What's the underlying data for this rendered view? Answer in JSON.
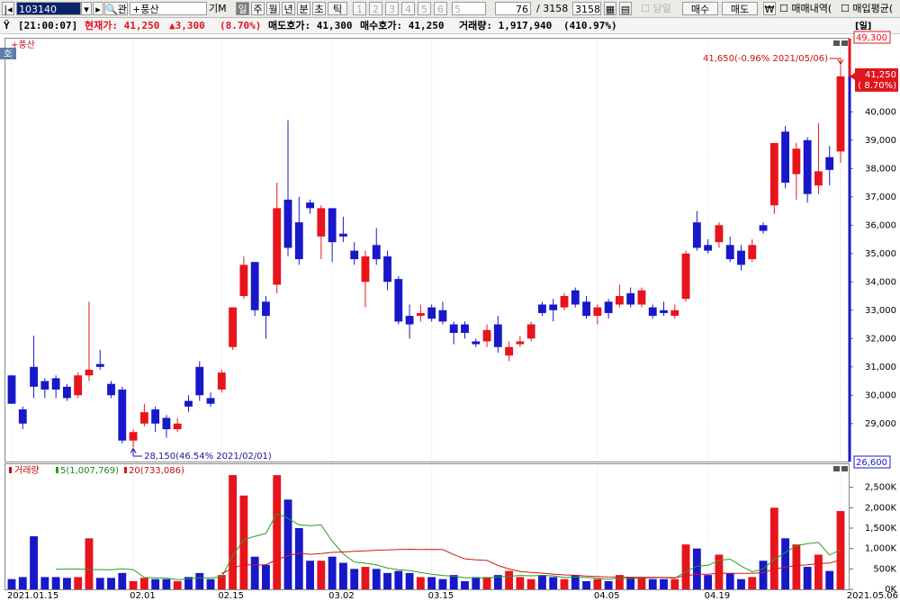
{
  "toolbar": {
    "code": "103140",
    "name": "+풍산",
    "periods": [
      "일",
      "주",
      "월",
      "년",
      "분",
      "초",
      "틱"
    ],
    "counts": [
      "1",
      "2",
      "3",
      "4",
      "5",
      "6"
    ],
    "count_select": "5",
    "view": "76",
    "total": "/ 3158",
    "total_box": "3158",
    "today": "당일",
    "buy": "매수",
    "sell": "매도",
    "won": "₩",
    "trades": "매매내역(",
    "avg": "매입평균("
  },
  "info_bar": {
    "time": "[21:00:07]",
    "price": "현재가: 41,250",
    "change": "▲3,300",
    "rate": "(8.70%)",
    "ask": "매도호가: 41,300",
    "bid": "매수호가: 41,250",
    "volume": "거래량: 1,917,940",
    "volume_rate": "(410.97%)"
  },
  "chart_data": {
    "type": "candlestick",
    "title": "+풍산",
    "badge": "호",
    "period_label": "[일]",
    "categories": [
      "2021.01.15",
      null,
      null,
      null,
      null,
      null,
      null,
      null,
      null,
      null,
      null,
      "02.01",
      null,
      null,
      null,
      null,
      null,
      null,
      null,
      "02.15",
      null,
      null,
      null,
      null,
      null,
      null,
      null,
      null,
      null,
      "03.02",
      null,
      null,
      null,
      null,
      null,
      null,
      null,
      null,
      "03.15",
      null,
      null,
      null,
      null,
      null,
      null,
      null,
      null,
      null,
      null,
      null,
      null,
      null,
      null,
      "04.05",
      null,
      null,
      null,
      null,
      null,
      null,
      null,
      null,
      null,
      "04.19",
      null,
      null,
      null,
      null,
      null,
      null,
      null,
      null,
      null,
      null,
      null,
      "2021.05.06"
    ],
    "open": [
      30700,
      29500,
      31000,
      30500,
      30600,
      30300,
      30000,
      30700,
      31100,
      30400,
      30200,
      28400,
      29000,
      29500,
      29200,
      28800,
      29800,
      31000,
      29900,
      30200,
      31700,
      33500,
      34700,
      33300,
      33900,
      36900,
      36100,
      36800,
      35600,
      36600,
      35700,
      35100,
      34000,
      35300,
      34900,
      34100,
      32800,
      32800,
      33100,
      33000,
      32500,
      32500,
      31900,
      31900,
      32500,
      31400,
      31800,
      32000,
      33200,
      33200,
      33100,
      33700,
      33300,
      32800,
      33300,
      33200,
      33600,
      33200,
      33100,
      33000,
      32800,
      33400,
      36100,
      35300,
      35400,
      35300,
      35100,
      34800,
      36000,
      36700,
      39300,
      37800,
      39000,
      37400,
      38400,
      38600
    ],
    "high": [
      30700,
      29600,
      32100,
      30600,
      30700,
      30400,
      30800,
      33300,
      31600,
      30500,
      30300,
      28800,
      29700,
      29600,
      29300,
      29200,
      30000,
      31200,
      30100,
      30900,
      33100,
      34900,
      34700,
      33500,
      37500,
      39700,
      37000,
      36900,
      36700,
      36600,
      36300,
      35400,
      35100,
      35900,
      35100,
      34200,
      33200,
      33200,
      33200,
      33300,
      32600,
      32600,
      32000,
      32500,
      32800,
      31900,
      32100,
      32600,
      33300,
      33400,
      33600,
      33800,
      33500,
      33200,
      33400,
      33900,
      33800,
      33800,
      33200,
      33300,
      33200,
      35100,
      36500,
      35500,
      36100,
      35600,
      35300,
      35500,
      36100,
      38900,
      39500,
      38900,
      39100,
      39600,
      38800,
      41650
    ],
    "low": [
      29700,
      28800,
      29900,
      29900,
      29900,
      29800,
      29900,
      30500,
      30900,
      29900,
      28300,
      28150,
      28900,
      28700,
      28500,
      28700,
      29400,
      29800,
      29600,
      30100,
      31600,
      33400,
      32800,
      32000,
      33600,
      34900,
      34600,
      36400,
      34800,
      34700,
      35400,
      34600,
      33100,
      34600,
      33700,
      32500,
      32000,
      32600,
      32600,
      32500,
      31800,
      32000,
      31700,
      31700,
      31500,
      31200,
      31700,
      31900,
      32800,
      32600,
      33000,
      33100,
      32700,
      32500,
      32700,
      33100,
      33100,
      33100,
      32700,
      32800,
      32700,
      33300,
      35100,
      35000,
      35200,
      34700,
      34400,
      34700,
      35700,
      36400,
      37300,
      36900,
      36800,
      37100,
      37400,
      38200
    ],
    "close": [
      29700,
      29000,
      30300,
      30200,
      30200,
      29900,
      30700,
      30900,
      31000,
      30000,
      28400,
      28700,
      29400,
      29000,
      28800,
      29000,
      29600,
      30000,
      29700,
      30800,
      33100,
      34600,
      33000,
      32800,
      36600,
      35200,
      34800,
      36600,
      36600,
      35400,
      35600,
      34800,
      34900,
      34800,
      34000,
      32600,
      32500,
      32900,
      32700,
      32600,
      32200,
      32200,
      31800,
      32300,
      31700,
      31700,
      31900,
      32500,
      32900,
      33000,
      33500,
      33200,
      32800,
      33100,
      32900,
      33500,
      33200,
      33700,
      32800,
      32900,
      33000,
      35000,
      35200,
      35100,
      36000,
      34800,
      34600,
      35300,
      35800,
      38900,
      37500,
      38700,
      37100,
      37900,
      37950,
      41250
    ],
    "up_color": "#e8141c",
    "down_color": "#1818c8",
    "ylim": [
      27660,
      42580
    ],
    "yticks": [
      {
        "value": 29000,
        "label": "29,000"
      },
      {
        "value": 30000,
        "label": "30,000"
      },
      {
        "value": 31000,
        "label": "31,000"
      },
      {
        "value": 32000,
        "label": "32,000"
      },
      {
        "value": 33000,
        "label": "33,000"
      },
      {
        "value": 34000,
        "label": "34,000"
      },
      {
        "value": 35000,
        "label": "35,000"
      },
      {
        "value": 36000,
        "label": "36,000"
      },
      {
        "value": 37000,
        "label": "37,000"
      },
      {
        "value": 38000,
        "label": "38,000"
      },
      {
        "value": 39000,
        "label": "39,000"
      },
      {
        "value": 40000,
        "label": "40,000"
      }
    ],
    "upper_limit": "49,300",
    "lower_limit": "26,600",
    "current": {
      "price": "41,250",
      "rate": "( 8.70%)"
    },
    "high_note": "41,650(-0.96% 2021/05/06)",
    "low_note": "28,150(46.54% 2021/02/01)",
    "volume": {
      "name": "거래량",
      "values": [
        250,
        300,
        1300,
        300,
        300,
        280,
        300,
        1250,
        280,
        280,
        400,
        200,
        280,
        250,
        250,
        200,
        300,
        400,
        250,
        350,
        2800,
        2300,
        800,
        600,
        2800,
        2200,
        1500,
        700,
        700,
        800,
        650,
        500,
        550,
        500,
        400,
        450,
        400,
        300,
        300,
        250,
        350,
        200,
        300,
        300,
        350,
        450,
        300,
        250,
        350,
        300,
        250,
        350,
        200,
        250,
        200,
        350,
        300,
        300,
        250,
        250,
        250,
        1100,
        1000,
        350,
        850,
        400,
        250,
        300,
        700,
        2000,
        1250,
        1100,
        550,
        850,
        450,
        1917.94
      ],
      "ylim": [
        0,
        3000
      ],
      "yticks": [
        {
          "value": 0,
          "label": "0K"
        },
        {
          "value": 500,
          "label": "500K"
        },
        {
          "value": 1000,
          "label": "1,000K"
        },
        {
          "value": 1500,
          "label": "1,500K"
        },
        {
          "value": 2000,
          "label": "2,000K"
        },
        {
          "value": 2500,
          "label": "2,500K"
        }
      ],
      "ma": [
        {
          "name": "5(1,007,769)",
          "period": 5,
          "color": "#22a022"
        },
        {
          "name": "20(733,086)",
          "period": 20,
          "color": "#d01818"
        }
      ]
    }
  }
}
